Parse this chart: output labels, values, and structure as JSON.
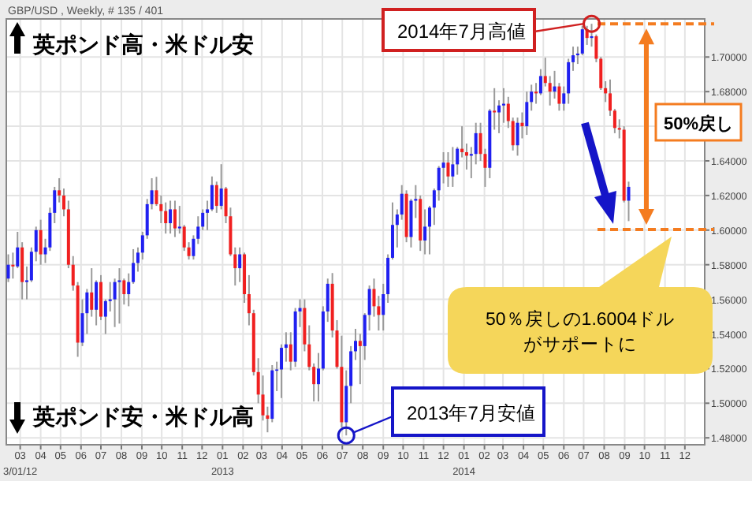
{
  "chart_data": {
    "type": "candlestick",
    "title": "GBP/USD , Weekly, # 135 / 401",
    "x": [
      "2012-02-12",
      "2012-02-19",
      "2012-02-26",
      "2012-03-04",
      "2012-03-11",
      "2012-03-18",
      "2012-03-25",
      "2012-04-01",
      "2012-04-08",
      "2012-04-15",
      "2012-04-22",
      "2012-04-29",
      "2012-05-06",
      "2012-05-13",
      "2012-05-20",
      "2012-05-27",
      "2012-06-03",
      "2012-06-10",
      "2012-06-17",
      "2012-06-24",
      "2012-07-01",
      "2012-07-08",
      "2012-07-15",
      "2012-07-22",
      "2012-07-29",
      "2012-08-05",
      "2012-08-12",
      "2012-08-19",
      "2012-08-26",
      "2012-09-02",
      "2012-09-09",
      "2012-09-16",
      "2012-09-23",
      "2012-09-30",
      "2012-10-07",
      "2012-10-14",
      "2012-10-21",
      "2012-10-28",
      "2012-11-04",
      "2012-11-11",
      "2012-11-18",
      "2012-11-25",
      "2012-12-02",
      "2012-12-09",
      "2012-12-16",
      "2012-12-23",
      "2012-12-30",
      "2013-01-06",
      "2013-01-13",
      "2013-01-20",
      "2013-01-27",
      "2013-02-03",
      "2013-02-10",
      "2013-02-17",
      "2013-02-24",
      "2013-03-03",
      "2013-03-10",
      "2013-03-17",
      "2013-03-24",
      "2013-03-31",
      "2013-04-07",
      "2013-04-14",
      "2013-04-21",
      "2013-04-28",
      "2013-05-05",
      "2013-05-12",
      "2013-05-19",
      "2013-05-26",
      "2013-06-02",
      "2013-06-09",
      "2013-06-16",
      "2013-06-23",
      "2013-06-30",
      "2013-07-07",
      "2013-07-14",
      "2013-07-21",
      "2013-07-28",
      "2013-08-04",
      "2013-08-11",
      "2013-08-18",
      "2013-08-25",
      "2013-09-01",
      "2013-09-08",
      "2013-09-15",
      "2013-09-22",
      "2013-09-29",
      "2013-10-06",
      "2013-10-13",
      "2013-10-20",
      "2013-10-27",
      "2013-11-03",
      "2013-11-10",
      "2013-11-17",
      "2013-11-24",
      "2013-12-01",
      "2013-12-08",
      "2013-12-15",
      "2013-12-22",
      "2013-12-29",
      "2014-01-05",
      "2014-01-12",
      "2014-01-19",
      "2014-01-26",
      "2014-02-02",
      "2014-02-09",
      "2014-02-16",
      "2014-02-23",
      "2014-03-02",
      "2014-03-09",
      "2014-03-16",
      "2014-03-23",
      "2014-03-30",
      "2014-04-06",
      "2014-04-13",
      "2014-04-20",
      "2014-04-27",
      "2014-05-04",
      "2014-05-11",
      "2014-05-18",
      "2014-05-25",
      "2014-06-01",
      "2014-06-08",
      "2014-06-15",
      "2014-06-22",
      "2014-06-29",
      "2014-07-06",
      "2014-07-13",
      "2014-07-20",
      "2014-07-27",
      "2014-08-03",
      "2014-08-10",
      "2014-08-17",
      "2014-08-24",
      "2014-08-31",
      "2014-09-07"
    ],
    "ohlc": [
      [
        1.572,
        1.586,
        1.57,
        1.58
      ],
      [
        1.58,
        1.587,
        1.572,
        1.579
      ],
      [
        1.579,
        1.599,
        1.578,
        1.59
      ],
      [
        1.59,
        1.593,
        1.56,
        1.57
      ],
      [
        1.57,
        1.579,
        1.56,
        1.571
      ],
      [
        1.571,
        1.59,
        1.57,
        1.5875
      ],
      [
        1.5875,
        1.602,
        1.582,
        1.6
      ],
      [
        1.6,
        1.606,
        1.58,
        1.586
      ],
      [
        1.586,
        1.595,
        1.581,
        1.59
      ],
      [
        1.59,
        1.613,
        1.588,
        1.61
      ],
      [
        1.61,
        1.625,
        1.604,
        1.623
      ],
      [
        1.623,
        1.63,
        1.616,
        1.62
      ],
      [
        1.62,
        1.624,
        1.608,
        1.612
      ],
      [
        1.612,
        1.617,
        1.578,
        1.58
      ],
      [
        1.58,
        1.585,
        1.565,
        1.568
      ],
      [
        1.568,
        1.57,
        1.5268,
        1.535
      ],
      [
        1.535,
        1.56,
        1.533,
        1.552
      ],
      [
        1.552,
        1.566,
        1.54,
        1.564
      ],
      [
        1.564,
        1.578,
        1.55,
        1.554
      ],
      [
        1.554,
        1.571,
        1.545,
        1.57
      ],
      [
        1.57,
        1.574,
        1.548,
        1.55
      ],
      [
        1.55,
        1.56,
        1.54,
        1.559
      ],
      [
        1.559,
        1.57,
        1.553,
        1.56
      ],
      [
        1.56,
        1.572,
        1.544,
        1.57
      ],
      [
        1.57,
        1.578,
        1.546,
        1.571
      ],
      [
        1.571,
        1.572,
        1.557,
        1.563
      ],
      [
        1.563,
        1.575,
        1.556,
        1.57
      ],
      [
        1.57,
        1.589,
        1.569,
        1.581
      ],
      [
        1.581,
        1.59,
        1.576,
        1.587
      ],
      [
        1.587,
        1.599,
        1.583,
        1.597
      ],
      [
        1.597,
        1.618,
        1.595,
        1.615
      ],
      [
        1.615,
        1.63,
        1.612,
        1.623
      ],
      [
        1.623,
        1.6308,
        1.614,
        1.615
      ],
      [
        1.615,
        1.62,
        1.604,
        1.611
      ],
      [
        1.611,
        1.616,
        1.598,
        1.604
      ],
      [
        1.604,
        1.617,
        1.598,
        1.612
      ],
      [
        1.612,
        1.617,
        1.596,
        1.601
      ],
      [
        1.601,
        1.614,
        1.598,
        1.602
      ],
      [
        1.602,
        1.603,
        1.588,
        1.59
      ],
      [
        1.59,
        1.593,
        1.583,
        1.585
      ],
      [
        1.585,
        1.597,
        1.583,
        1.595
      ],
      [
        1.595,
        1.608,
        1.592,
        1.602
      ],
      [
        1.602,
        1.612,
        1.6,
        1.61
      ],
      [
        1.61,
        1.617,
        1.6,
        1.612
      ],
      [
        1.612,
        1.631,
        1.611,
        1.626
      ],
      [
        1.626,
        1.628,
        1.61,
        1.614
      ],
      [
        1.614,
        1.6381,
        1.612,
        1.624
      ],
      [
        1.624,
        1.625,
        1.604,
        1.608
      ],
      [
        1.608,
        1.613,
        1.585,
        1.586
      ],
      [
        1.586,
        1.59,
        1.568,
        1.578
      ],
      [
        1.578,
        1.59,
        1.57,
        1.586
      ],
      [
        1.586,
        1.587,
        1.558,
        1.563
      ],
      [
        1.563,
        1.574,
        1.545,
        1.552
      ],
      [
        1.552,
        1.554,
        1.516,
        1.518
      ],
      [
        1.518,
        1.526,
        1.5,
        1.505
      ],
      [
        1.505,
        1.516,
        1.49,
        1.493
      ],
      [
        1.493,
        1.498,
        1.4832,
        1.491
      ],
      [
        1.491,
        1.522,
        1.489,
        1.519
      ],
      [
        1.519,
        1.524,
        1.507,
        1.5195
      ],
      [
        1.5195,
        1.534,
        1.503,
        1.532
      ],
      [
        1.532,
        1.541,
        1.524,
        1.534
      ],
      [
        1.534,
        1.541,
        1.519,
        1.524
      ],
      [
        1.524,
        1.555,
        1.521,
        1.553
      ],
      [
        1.553,
        1.56,
        1.544,
        1.555
      ],
      [
        1.555,
        1.56,
        1.53,
        1.534
      ],
      [
        1.534,
        1.545,
        1.519,
        1.521
      ],
      [
        1.521,
        1.523,
        1.501,
        1.511
      ],
      [
        1.511,
        1.529,
        1.501,
        1.52
      ],
      [
        1.52,
        1.556,
        1.519,
        1.553
      ],
      [
        1.553,
        1.572,
        1.547,
        1.569
      ],
      [
        1.569,
        1.5752,
        1.538,
        1.542
      ],
      [
        1.542,
        1.548,
        1.52,
        1.521
      ],
      [
        1.521,
        1.539,
        1.486,
        1.489
      ],
      [
        1.489,
        1.519,
        1.4814,
        1.51
      ],
      [
        1.51,
        1.533,
        1.5,
        1.53
      ],
      [
        1.53,
        1.543,
        1.525,
        1.536
      ],
      [
        1.536,
        1.54,
        1.511,
        1.533
      ],
      [
        1.533,
        1.552,
        1.525,
        1.551
      ],
      [
        1.551,
        1.568,
        1.542,
        1.566
      ],
      [
        1.566,
        1.572,
        1.55,
        1.556
      ],
      [
        1.556,
        1.562,
        1.542,
        1.551
      ],
      [
        1.551,
        1.569,
        1.542,
        1.563
      ],
      [
        1.563,
        1.586,
        1.558,
        1.584
      ],
      [
        1.584,
        1.616,
        1.583,
        1.603
      ],
      [
        1.603,
        1.612,
        1.59,
        1.609
      ],
      [
        1.609,
        1.626,
        1.606,
        1.621
      ],
      [
        1.621,
        1.623,
        1.593,
        1.596
      ],
      [
        1.596,
        1.618,
        1.59,
        1.617
      ],
      [
        1.617,
        1.626,
        1.607,
        1.618
      ],
      [
        1.618,
        1.62,
        1.588,
        1.594
      ],
      [
        1.594,
        1.612,
        1.586,
        1.602
      ],
      [
        1.602,
        1.614,
        1.586,
        1.613
      ],
      [
        1.613,
        1.624,
        1.603,
        1.623
      ],
      [
        1.623,
        1.637,
        1.617,
        1.636
      ],
      [
        1.636,
        1.645,
        1.627,
        1.639
      ],
      [
        1.639,
        1.645,
        1.625,
        1.631
      ],
      [
        1.631,
        1.648,
        1.625,
        1.638
      ],
      [
        1.638,
        1.648,
        1.632,
        1.647
      ],
      [
        1.647,
        1.66,
        1.642,
        1.645
      ],
      [
        1.645,
        1.65,
        1.635,
        1.643
      ],
      [
        1.643,
        1.648,
        1.63,
        1.644
      ],
      [
        1.644,
        1.662,
        1.638,
        1.656
      ],
      [
        1.656,
        1.662,
        1.64,
        1.644
      ],
      [
        1.644,
        1.647,
        1.625,
        1.636
      ],
      [
        1.636,
        1.67,
        1.63,
        1.669
      ],
      [
        1.669,
        1.682,
        1.658,
        1.668
      ],
      [
        1.668,
        1.675,
        1.656,
        1.672
      ],
      [
        1.672,
        1.682,
        1.662,
        1.673
      ],
      [
        1.673,
        1.677,
        1.659,
        1.663
      ],
      [
        1.663,
        1.665,
        1.646,
        1.649
      ],
      [
        1.649,
        1.665,
        1.643,
        1.662
      ],
      [
        1.662,
        1.668,
        1.653,
        1.66
      ],
      [
        1.66,
        1.68,
        1.655,
        1.674
      ],
      [
        1.674,
        1.684,
        1.669,
        1.68
      ],
      [
        1.68,
        1.685,
        1.673,
        1.679
      ],
      [
        1.679,
        1.693,
        1.678,
        1.689
      ],
      [
        1.689,
        1.6996,
        1.683,
        1.685
      ],
      [
        1.685,
        1.689,
        1.672,
        1.68
      ],
      [
        1.68,
        1.692,
        1.676,
        1.683
      ],
      [
        1.683,
        1.685,
        1.669,
        1.673
      ],
      [
        1.673,
        1.683,
        1.669,
        1.679
      ],
      [
        1.679,
        1.699,
        1.673,
        1.697
      ],
      [
        1.697,
        1.706,
        1.692,
        1.701
      ],
      [
        1.701,
        1.706,
        1.696,
        1.702
      ],
      [
        1.702,
        1.718,
        1.701,
        1.716
      ],
      [
        1.716,
        1.718,
        1.707,
        1.711
      ],
      [
        1.711,
        1.7192,
        1.706,
        1.712
      ],
      [
        1.712,
        1.713,
        1.697,
        1.699
      ],
      [
        1.699,
        1.7,
        1.681,
        1.682
      ],
      [
        1.682,
        1.686,
        1.674,
        1.679
      ],
      [
        1.679,
        1.687,
        1.666,
        1.669
      ],
      [
        1.669,
        1.67,
        1.656,
        1.659
      ],
      [
        1.659,
        1.664,
        1.653,
        1.658
      ],
      [
        1.658,
        1.66,
        1.616,
        1.617
      ],
      [
        1.617,
        1.628,
        1.6052,
        1.625
      ]
    ],
    "colors": [
      "#2020f0",
      "#f02020",
      "#2020f0",
      "#f02020",
      "#2020f0",
      "#2020f0",
      "#2020f0",
      "#f02020",
      "#2020f0",
      "#2020f0",
      "#2020f0",
      "#f02020",
      "#f02020",
      "#f02020",
      "#f02020",
      "#f02020",
      "#2020f0",
      "#2020f0",
      "#f02020",
      "#2020f0",
      "#f02020",
      "#2020f0",
      "#2020f0",
      "#2020f0",
      "#2020f0",
      "#f02020",
      "#2020f0",
      "#2020f0",
      "#2020f0",
      "#2020f0",
      "#2020f0",
      "#2020f0",
      "#f02020",
      "#f02020",
      "#f02020",
      "#2020f0",
      "#f02020",
      "#2020f0",
      "#f02020",
      "#f02020",
      "#2020f0",
      "#2020f0",
      "#2020f0",
      "#2020f0",
      "#2020f0",
      "#f02020",
      "#2020f0",
      "#f02020",
      "#f02020",
      "#f02020",
      "#2020f0",
      "#f02020",
      "#f02020",
      "#f02020",
      "#f02020",
      "#f02020",
      "#f02020",
      "#2020f0",
      "#2020f0",
      "#2020f0",
      "#2020f0",
      "#f02020",
      "#2020f0",
      "#2020f0",
      "#f02020",
      "#f02020",
      "#f02020",
      "#2020f0",
      "#2020f0",
      "#2020f0",
      "#f02020",
      "#f02020",
      "#f02020",
      "#2020f0",
      "#2020f0",
      "#2020f0",
      "#f02020",
      "#2020f0",
      "#2020f0",
      "#f02020",
      "#f02020",
      "#2020f0",
      "#2020f0",
      "#2020f0",
      "#2020f0",
      "#2020f0",
      "#f02020",
      "#2020f0",
      "#2020f0",
      "#f02020",
      "#2020f0",
      "#2020f0",
      "#2020f0",
      "#2020f0",
      "#2020f0",
      "#f02020",
      "#2020f0",
      "#2020f0",
      "#f02020",
      "#f02020",
      "#2020f0",
      "#2020f0",
      "#f02020",
      "#f02020",
      "#2020f0",
      "#f02020",
      "#2020f0",
      "#2020f0",
      "#f02020",
      "#f02020",
      "#2020f0",
      "#f02020",
      "#2020f0",
      "#2020f0",
      "#f02020",
      "#2020f0",
      "#f02020",
      "#f02020",
      "#2020f0",
      "#f02020",
      "#2020f0",
      "#2020f0",
      "#2020f0",
      "#2020f0",
      "#2020f0",
      "#f02020",
      "#2020f0",
      "#f02020",
      "#f02020",
      "#f02020",
      "#f02020",
      "#f02020",
      "#f02020",
      "#f02020",
      "#2020f0"
    ],
    "xlim": [
      "2012-02-09",
      "2014-12-31"
    ],
    "xticks": [
      {
        "value": "2012-03-01",
        "label": "03\n3/01/12"
      },
      {
        "value": "2012-04-01",
        "label": "04"
      },
      {
        "value": "2012-05-01",
        "label": "05"
      },
      {
        "value": "2012-06-01",
        "label": "06"
      },
      {
        "value": "2012-07-01",
        "label": "07"
      },
      {
        "value": "2012-08-01",
        "label": "08"
      },
      {
        "value": "2012-09-01",
        "label": "09"
      },
      {
        "value": "2012-10-01",
        "label": "10"
      },
      {
        "value": "2012-11-01",
        "label": "11"
      },
      {
        "value": "2012-12-01",
        "label": "12"
      },
      {
        "value": "2013-01-01",
        "label": "01\n2013"
      },
      {
        "value": "2013-02-01",
        "label": "02"
      },
      {
        "value": "2013-03-01",
        "label": "03"
      },
      {
        "value": "2013-04-01",
        "label": "04"
      },
      {
        "value": "2013-05-01",
        "label": "05"
      },
      {
        "value": "2013-06-01",
        "label": "06"
      },
      {
        "value": "2013-07-01",
        "label": "07"
      },
      {
        "value": "2013-08-01",
        "label": "08"
      },
      {
        "value": "2013-09-01",
        "label": "09"
      },
      {
        "value": "2013-10-01",
        "label": "10"
      },
      {
        "value": "2013-11-01",
        "label": "11"
      },
      {
        "value": "2013-12-01",
        "label": "12"
      },
      {
        "value": "2014-01-01",
        "label": "01\n2014"
      },
      {
        "value": "2014-02-01",
        "label": "02"
      },
      {
        "value": "2014-03-01",
        "label": "03"
      },
      {
        "value": "2014-04-01",
        "label": "04"
      },
      {
        "value": "2014-05-01",
        "label": "05"
      },
      {
        "value": "2014-06-01",
        "label": "06"
      },
      {
        "value": "2014-07-01",
        "label": "07"
      },
      {
        "value": "2014-08-01",
        "label": "08"
      },
      {
        "value": "2014-09-01",
        "label": "09"
      },
      {
        "value": "2014-10-01",
        "label": "10"
      },
      {
        "value": "2014-11-01",
        "label": "11"
      },
      {
        "value": "2014-12-01",
        "label": "12"
      }
    ],
    "ylim": [
      1.476,
      1.722
    ],
    "yticks": [
      {
        "value": 1.48,
        "label": "1.48000"
      },
      {
        "value": 1.5,
        "label": "1.50000"
      },
      {
        "value": 1.52,
        "label": "1.52000"
      },
      {
        "value": 1.54,
        "label": "1.54000"
      },
      {
        "value": 1.56,
        "label": "1.56000"
      },
      {
        "value": 1.58,
        "label": "1.58000"
      },
      {
        "value": 1.6,
        "label": "1.60000"
      },
      {
        "value": 1.62,
        "label": "1.62000"
      },
      {
        "value": 1.64,
        "label": "1.64000"
      },
      {
        "value": 1.66,
        "label": null
      },
      {
        "value": 1.68,
        "label": "1.68000"
      },
      {
        "value": 1.7,
        "label": "1.70000"
      }
    ],
    "grid": true,
    "ref_lines": [
      {
        "axis": "y",
        "value": 1.7192,
        "color": "#f47c20",
        "line_style": "dashed"
      },
      {
        "axis": "y",
        "value": 1.6004,
        "color": "#f47c20",
        "line_style": "dashed"
      }
    ],
    "annotations": [
      "英ポンド高・米ドル安",
      "英ポンド安・米ドル高",
      {
        "text": "2014年7月高値",
        "x": "2014-07-13",
        "y": 1.7192
      },
      {
        "text": "2013年7月安値",
        "x": "2013-07-07",
        "y": 1.4814
      },
      "50%戻し",
      "50％戻しの1.6004ドル",
      "がサポートに"
    ]
  }
}
